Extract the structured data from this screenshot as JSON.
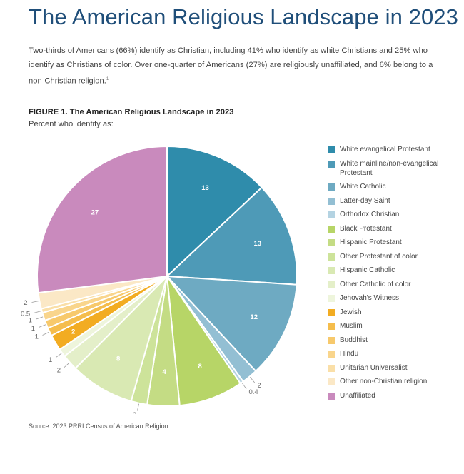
{
  "title": "The American Religious Landscape in 2023",
  "intro": {
    "text": "Two-thirds of Americans (66%) identify as Christian, including 41% who identify as white Christians and 25% who identify as Christians of color. Over one-quarter of Americans (27%) are religiously unaffiliated, and 6% belong to a non-Christian religion.",
    "footnote": "1"
  },
  "figure": {
    "label": "FIGURE 1.  The American Religious Landscape in 2023",
    "subtitle": "Percent who identify as:"
  },
  "source": "Source: 2023 PRRI Census of American Religion.",
  "chart_data": {
    "type": "pie",
    "title": "The American Religious Landscape in 2023",
    "subtitle": "Percent who identify as:",
    "legend_position": "right",
    "start_angle_deg": 0,
    "direction": "clockwise",
    "slices": [
      {
        "label": "White evangelical Protestant",
        "value": 13,
        "display": "13",
        "color": "#2f8cab"
      },
      {
        "label": "White mainline/non-evangelical Protestant",
        "value": 13,
        "display": "13",
        "color": "#4e9ab7"
      },
      {
        "label": "White Catholic",
        "value": 12,
        "display": "12",
        "color": "#6eaac2"
      },
      {
        "label": "Latter-day Saint",
        "value": 2,
        "display": "2",
        "color": "#93bfd3"
      },
      {
        "label": "Orthodox Christian",
        "value": 0.4,
        "display": "0.4",
        "color": "#b4d3e2"
      },
      {
        "label": "Black Protestant",
        "value": 8,
        "display": "8",
        "color": "#b7d567"
      },
      {
        "label": "Hispanic Protestant",
        "value": 4,
        "display": "4",
        "color": "#c4dc84"
      },
      {
        "label": "Other Protestant of color",
        "value": 2,
        "display": "2",
        "color": "#cde39a"
      },
      {
        "label": "Hispanic Catholic",
        "value": 8,
        "display": "8",
        "color": "#d9e9b3"
      },
      {
        "label": "Other Catholic of color",
        "value": 2,
        "display": "2",
        "color": "#e4efc9"
      },
      {
        "label": "Jehovah's Witness",
        "value": 1,
        "display": "1",
        "color": "#eef5dc"
      },
      {
        "label": "Jewish",
        "value": 2,
        "display": "2",
        "color": "#f2ac22"
      },
      {
        "label": "Muslim",
        "value": 1,
        "display": "1",
        "color": "#f5bd4c"
      },
      {
        "label": "Buddhist",
        "value": 1,
        "display": "1",
        "color": "#f7c96c"
      },
      {
        "label": "Hindu",
        "value": 1,
        "display": "1",
        "color": "#f9d58c"
      },
      {
        "label": "Unitarian Universalist",
        "value": 0.5,
        "display": "0.5",
        "color": "#fadfa8"
      },
      {
        "label": "Other non-Christian religion",
        "value": 2,
        "display": "2",
        "color": "#fbe8c6"
      },
      {
        "label": "Unaffiliated",
        "value": 27,
        "display": "27",
        "color": "#c98abd"
      }
    ]
  }
}
